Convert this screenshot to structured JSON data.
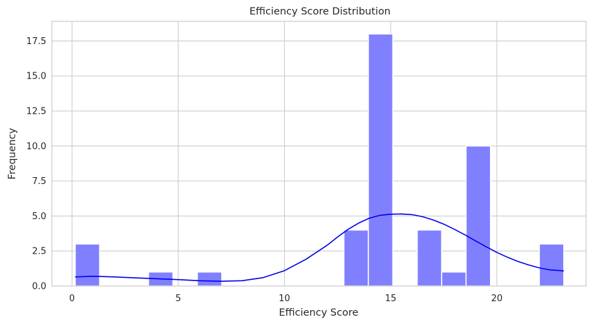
{
  "chart_data": {
    "type": "bar",
    "title": "Efficiency Score Distribution",
    "xlabel": "Efficiency Score",
    "ylabel": "Frequency",
    "xlim": [
      -0.95,
      24.2
    ],
    "ylim": [
      0,
      18.9
    ],
    "xticks": [
      0,
      5,
      10,
      15,
      20
    ],
    "xtick_labels": [
      "0",
      "5",
      "10",
      "15",
      "20"
    ],
    "yticks": [
      0,
      2.5,
      5,
      7.5,
      10,
      12.5,
      15,
      17.5
    ],
    "ytick_labels": [
      "0.0",
      "2.5",
      "5.0",
      "7.5",
      "10.0",
      "12.5",
      "15.0",
      "17.5"
    ],
    "bin_edges": [
      0.15,
      1.3,
      2.45,
      3.6,
      4.75,
      5.9,
      7.05,
      8.2,
      9.35,
      10.5,
      11.65,
      12.8,
      13.95,
      15.1,
      16.25,
      17.4,
      18.55,
      19.7,
      20.85,
      22.0,
      23.15
    ],
    "counts": [
      3,
      0,
      0,
      1,
      0,
      1,
      0,
      0,
      0,
      0,
      0,
      4,
      18,
      0,
      4,
      1,
      10,
      0,
      0,
      3
    ],
    "kde": {
      "x": [
        0.15,
        1,
        2,
        3,
        4,
        5,
        6,
        7,
        8,
        9,
        10,
        11,
        12,
        12.5,
        13,
        13.5,
        14,
        14.5,
        15,
        15.5,
        16,
        16.5,
        17,
        17.5,
        18,
        18.5,
        19,
        19.5,
        20,
        20.5,
        21,
        21.5,
        22,
        22.5,
        23.15
      ],
      "y": [
        0.65,
        0.7,
        0.65,
        0.58,
        0.52,
        0.46,
        0.38,
        0.34,
        0.38,
        0.6,
        1.1,
        1.9,
        2.9,
        3.5,
        4.05,
        4.5,
        4.85,
        5.05,
        5.13,
        5.15,
        5.1,
        4.95,
        4.72,
        4.42,
        4.05,
        3.65,
        3.22,
        2.8,
        2.4,
        2.05,
        1.75,
        1.5,
        1.3,
        1.15,
        1.08
      ]
    },
    "bar_color": "#8080ff",
    "bar_edge_color": "#ffffff",
    "kde_color": "#0000ee",
    "grid": true,
    "grid_color": "#cccccc",
    "frame_color": "#cccccc"
  }
}
